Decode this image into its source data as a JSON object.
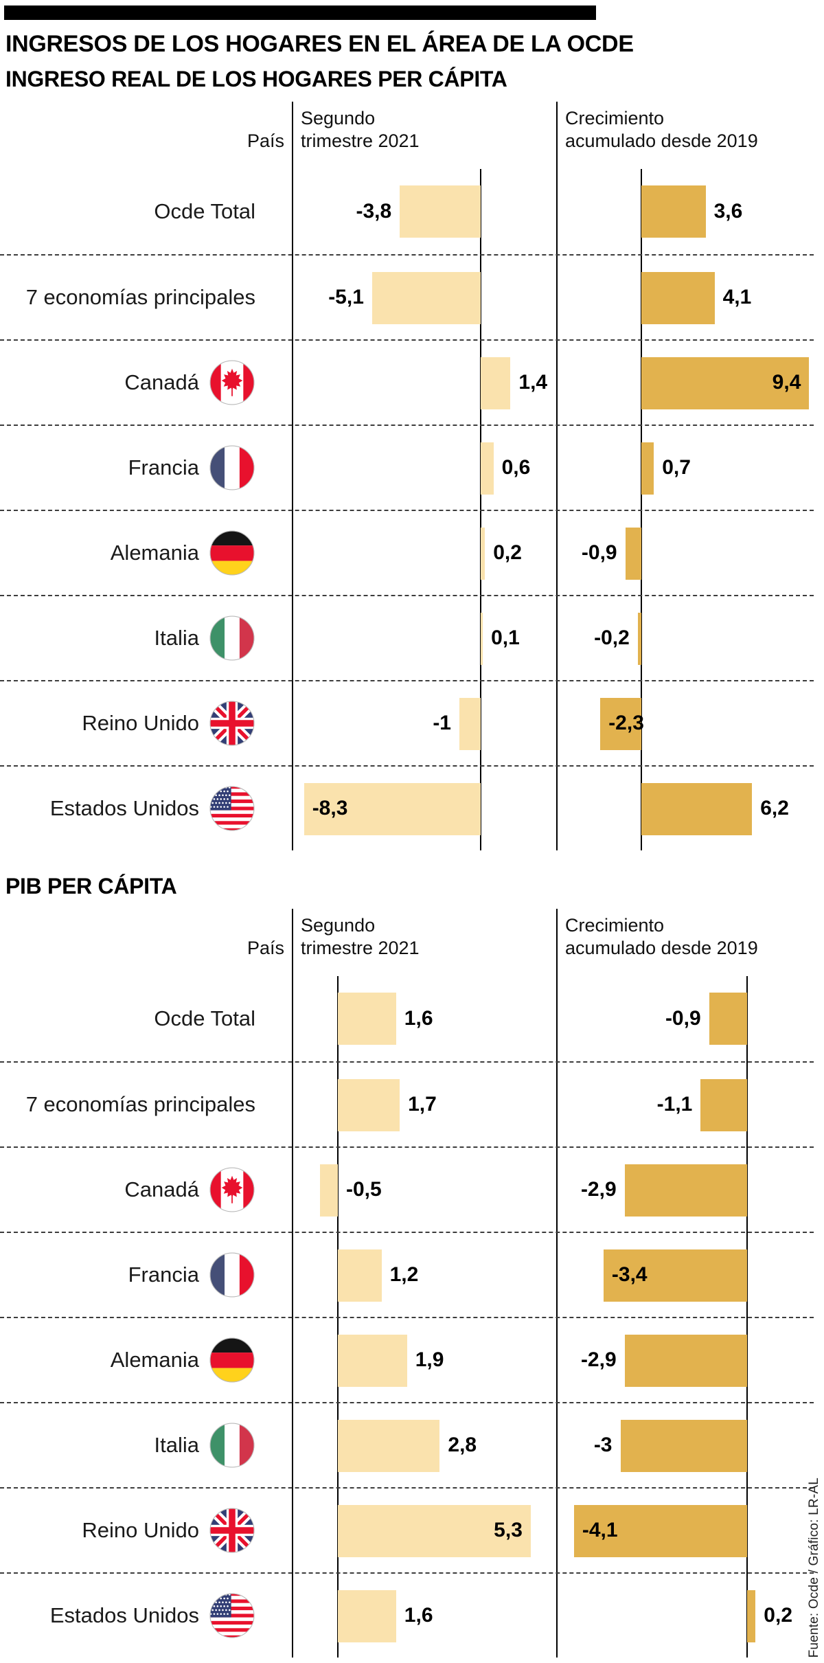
{
  "page": {
    "title": "INGRESOS DE LOS HOGARES EN EL ÁREA DE LA OCDE",
    "source_credit": "Fuente: Ocde / Gráfico: LR-AL"
  },
  "colors": {
    "light_bar": "#FAE2AD",
    "dark_bar": "#E2B24E",
    "accent_bar": "#000000",
    "text": "#000000"
  },
  "table_headers": {
    "country": "País",
    "col1": "Segundo\ntrimestre 2021",
    "col2": "Crecimiento\nacumulado desde 2019"
  },
  "chart_data": [
    {
      "type": "bar",
      "orientation": "horizontal",
      "title": "INGRESO REAL DE LOS HOGARES PER CÁPITA",
      "columns": [
        "Segundo trimestre 2021",
        "Crecimiento acumulado desde 2019"
      ],
      "unit": "percent change",
      "grid": "dashed row separators, solid zero axes",
      "rows": [
        {
          "country": "Ocde Total",
          "flag": null,
          "col1": -3.8,
          "col1_label": "-3,8",
          "col2": 3.6,
          "col2_label": "3,6"
        },
        {
          "country": "7 economías principales",
          "flag": null,
          "col1": -5.1,
          "col1_label": "-5,1",
          "col2": 4.1,
          "col2_label": "4,1"
        },
        {
          "country": "Canadá",
          "flag": "canada",
          "col1": 1.4,
          "col1_label": "1,4",
          "col2": 9.4,
          "col2_label": "9,4",
          "col2_lp": "in"
        },
        {
          "country": "Francia",
          "flag": "france",
          "col1": 0.6,
          "col1_label": "0,6",
          "col2": 0.7,
          "col2_label": "0,7"
        },
        {
          "country": "Alemania",
          "flag": "germany",
          "col1": 0.2,
          "col1_label": "0,2",
          "col2": -0.9,
          "col2_label": "-0,9"
        },
        {
          "country": "Italia",
          "flag": "italy",
          "col1": 0.1,
          "col1_label": "0,1",
          "col2": -0.2,
          "col2_label": "-0,2"
        },
        {
          "country": "Reino Unido",
          "flag": "uk",
          "col1": -1,
          "col1_label": "-1",
          "col2": -2.3,
          "col2_label": "-2,3",
          "col2_lp": "in"
        },
        {
          "country": "Estados Unidos",
          "flag": "usa",
          "col1": -8.3,
          "col1_label": "-8,3",
          "col1_lp": "in",
          "col2": 6.2,
          "col2_label": "6,2"
        }
      ]
    },
    {
      "type": "bar",
      "orientation": "horizontal",
      "title": "PIB PER CÁPITA",
      "columns": [
        "Segundo trimestre 2021",
        "Crecimiento acumulado desde 2019"
      ],
      "unit": "percent change",
      "grid": "dashed row separators, solid zero axes",
      "rows": [
        {
          "country": "Ocde Total",
          "flag": null,
          "col1": 1.6,
          "col1_label": "1,6",
          "col2": -0.9,
          "col2_label": "-0,9"
        },
        {
          "country": "7 economías principales",
          "flag": null,
          "col1": 1.7,
          "col1_label": "1,7",
          "col2": -1.1,
          "col2_label": "-1,1"
        },
        {
          "country": "Canadá",
          "flag": "canada",
          "col1": -0.5,
          "col1_label": "-0,5",
          "col1_lp": "axis-right",
          "col2": -2.9,
          "col2_label": "-2,9"
        },
        {
          "country": "Francia",
          "flag": "france",
          "col1": 1.2,
          "col1_label": "1,2",
          "col2": -3.4,
          "col2_label": "-3,4",
          "col2_lp": "in"
        },
        {
          "country": "Alemania",
          "flag": "germany",
          "col1": 1.9,
          "col1_label": "1,9",
          "col2": -2.9,
          "col2_label": "-2,9"
        },
        {
          "country": "Italia",
          "flag": "italy",
          "col1": 2.8,
          "col1_label": "2,8",
          "col2": -3,
          "col2_label": "-3"
        },
        {
          "country": "Reino Unido",
          "flag": "uk",
          "col1": 5.3,
          "col1_label": "5,3",
          "col1_lp": "in",
          "col2": -4.1,
          "col2_label": "-4,1",
          "col2_lp": "in"
        },
        {
          "country": "Estados Unidos",
          "flag": "usa",
          "col1": 1.6,
          "col1_label": "1,6",
          "col2": 0.2,
          "col2_label": "0,2"
        }
      ]
    }
  ]
}
